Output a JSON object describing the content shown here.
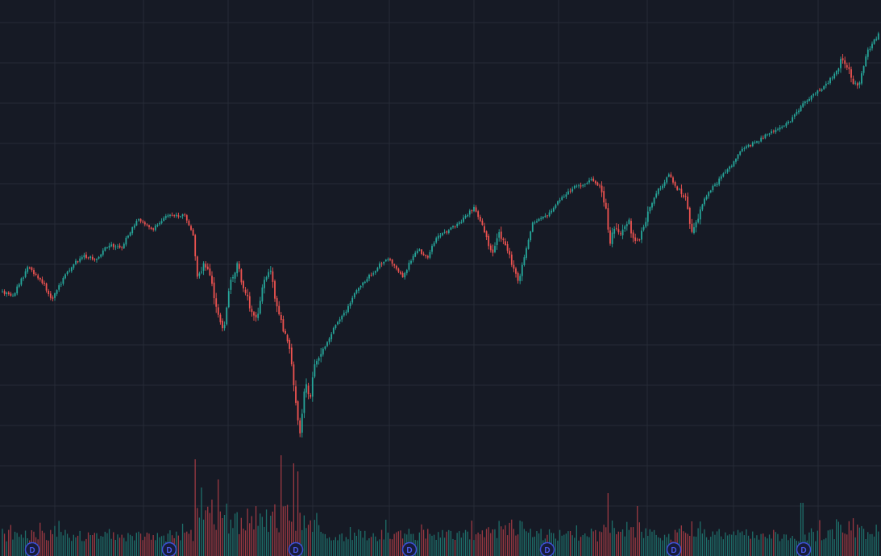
{
  "theme": {
    "background": "#161a25",
    "grid": "#262b37",
    "up_color": "#26a69a",
    "down_color": "#ef5350",
    "up_volume_color": "#1e6f6a",
    "down_volume_color": "#9b3942",
    "dividend_badge_color": "#3d50d6"
  },
  "chart_data": {
    "type": "candlestick",
    "title": "",
    "xlabel": "",
    "ylabel": "",
    "grid": true,
    "legend": "none",
    "volume_panel": true,
    "close_path": [
      [
        0,
        360
      ],
      [
        15,
        368
      ],
      [
        35,
        332
      ],
      [
        55,
        354
      ],
      [
        65,
        372
      ],
      [
        75,
        352
      ],
      [
        90,
        328
      ],
      [
        105,
        318
      ],
      [
        120,
        322
      ],
      [
        135,
        303
      ],
      [
        150,
        308
      ],
      [
        170,
        272
      ],
      [
        190,
        284
      ],
      [
        210,
        266
      ],
      [
        230,
        268
      ],
      [
        240,
        292
      ],
      [
        245,
        342
      ],
      [
        255,
        326
      ],
      [
        262,
        352
      ],
      [
        270,
        392
      ],
      [
        277,
        410
      ],
      [
        285,
        356
      ],
      [
        295,
        326
      ],
      [
        300,
        350
      ],
      [
        310,
        380
      ],
      [
        318,
        396
      ],
      [
        325,
        360
      ],
      [
        335,
        330
      ],
      [
        342,
        378
      ],
      [
        350,
        404
      ],
      [
        358,
        428
      ],
      [
        363,
        462
      ],
      [
        368,
        512
      ],
      [
        372,
        545
      ],
      [
        378,
        478
      ],
      [
        385,
        490
      ],
      [
        390,
        452
      ],
      [
        400,
        436
      ],
      [
        410,
        416
      ],
      [
        420,
        396
      ],
      [
        430,
        386
      ],
      [
        440,
        364
      ],
      [
        455,
        346
      ],
      [
        470,
        330
      ],
      [
        480,
        320
      ],
      [
        490,
        332
      ],
      [
        500,
        344
      ],
      [
        510,
        322
      ],
      [
        520,
        310
      ],
      [
        530,
        322
      ],
      [
        540,
        296
      ],
      [
        555,
        288
      ],
      [
        570,
        276
      ],
      [
        588,
        258
      ],
      [
        600,
        282
      ],
      [
        610,
        316
      ],
      [
        620,
        290
      ],
      [
        630,
        312
      ],
      [
        642,
        350
      ],
      [
        648,
        330
      ],
      [
        660,
        278
      ],
      [
        670,
        270
      ],
      [
        680,
        266
      ],
      [
        695,
        246
      ],
      [
        710,
        234
      ],
      [
        720,
        230
      ],
      [
        735,
        222
      ],
      [
        745,
        232
      ],
      [
        752,
        262
      ],
      [
        757,
        304
      ],
      [
        762,
        282
      ],
      [
        770,
        290
      ],
      [
        780,
        270
      ],
      [
        785,
        300
      ],
      [
        795,
        292
      ],
      [
        805,
        262
      ],
      [
        815,
        238
      ],
      [
        830,
        218
      ],
      [
        840,
        234
      ],
      [
        850,
        242
      ],
      [
        858,
        288
      ],
      [
        866,
        268
      ],
      [
        875,
        244
      ],
      [
        890,
        226
      ],
      [
        905,
        208
      ],
      [
        920,
        186
      ],
      [
        935,
        178
      ],
      [
        950,
        168
      ],
      [
        965,
        160
      ],
      [
        980,
        150
      ],
      [
        995,
        130
      ],
      [
        1010,
        118
      ],
      [
        1025,
        104
      ],
      [
        1035,
        92
      ],
      [
        1045,
        72
      ],
      [
        1052,
        82
      ],
      [
        1058,
        102
      ],
      [
        1065,
        110
      ],
      [
        1075,
        66
      ],
      [
        1093,
        38
      ]
    ],
    "volume_spikes": [
      [
        243,
        120
      ],
      [
        250,
        85
      ],
      [
        262,
        70
      ],
      [
        270,
        95
      ],
      [
        350,
        125
      ],
      [
        365,
        115
      ],
      [
        370,
        105
      ],
      [
        755,
        78
      ],
      [
        790,
        62
      ],
      [
        995,
        66
      ]
    ],
    "dividend_markers": [
      "D",
      "D",
      "D",
      "D",
      "D",
      "D",
      "D"
    ]
  }
}
